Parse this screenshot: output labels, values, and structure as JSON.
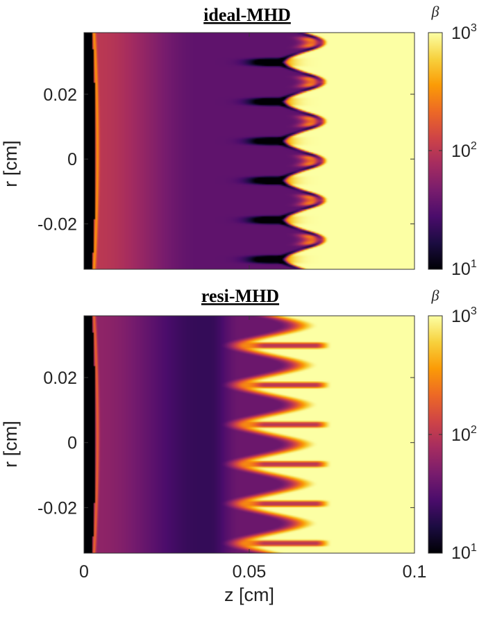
{
  "colormap": [
    "#000004",
    "#1b0c41",
    "#4a0c6b",
    "#781c6d",
    "#a52c60",
    "#cf4446",
    "#ed6925",
    "#fb9b06",
    "#f7d13d",
    "#fcffa4"
  ],
  "chart_data": [
    {
      "type": "heatmap",
      "title": "ideal-MHD",
      "xlabel": "",
      "ylabel": "r [cm]",
      "xlim": [
        0,
        0.1
      ],
      "ylim": [
        -0.034,
        0.039
      ],
      "yticks": [
        -0.02,
        0,
        0.02
      ],
      "ytick_labels": [
        "-0.02",
        "0",
        "0.02"
      ],
      "xticks": [
        0,
        0.05,
        0.1
      ],
      "colorbar": {
        "label": "β",
        "scale": "log",
        "range": [
          10,
          1000
        ],
        "tick_bases": [
          "10",
          "10",
          "10"
        ],
        "tick_exponents": [
          "1",
          "2",
          "3"
        ]
      },
      "field_description": {
        "low_beta_wall_z": 0.0035,
        "plasma_beta_near_wall": 100,
        "plasma_beta_mid": 35,
        "interface_z": 0.06,
        "vacuum_beta": 1000,
        "instability": "Rayleigh-Taylor fingers with dark low-beta fringes",
        "finger_count": 6
      }
    },
    {
      "type": "heatmap",
      "title": "resi-MHD",
      "xlabel": "z [cm]",
      "ylabel": "r [cm]",
      "xlim": [
        0,
        0.1
      ],
      "ylim": [
        -0.034,
        0.039
      ],
      "yticks": [
        -0.02,
        0,
        0.02
      ],
      "ytick_labels": [
        "-0.02",
        "0",
        "0.02"
      ],
      "xticks": [
        0,
        0.05,
        0.1
      ],
      "xtick_labels": [
        "0",
        "0.05",
        "0.1"
      ],
      "colorbar": {
        "label": "β",
        "scale": "log",
        "range": [
          10,
          1000
        ],
        "tick_bases": [
          "10",
          "10",
          "10"
        ],
        "tick_exponents": [
          "1",
          "2",
          "3"
        ]
      },
      "field_description": {
        "low_beta_wall_z": 0.0035,
        "plasma_beta_near_wall": 60,
        "plasma_beta_mid": 22,
        "interface_z": 0.047,
        "vacuum_beta": 1000,
        "instability": "smooth diffuse fingers with thin dark cores",
        "finger_count": 6
      }
    }
  ]
}
